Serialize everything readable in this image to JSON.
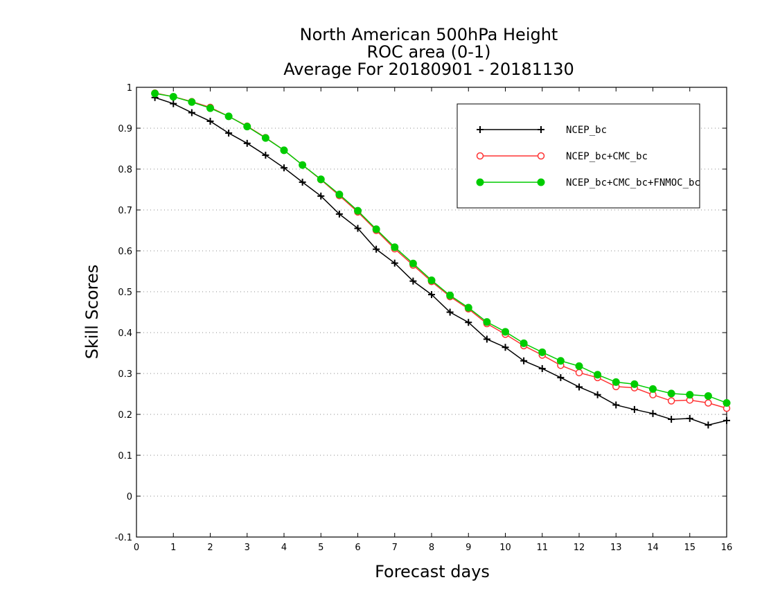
{
  "chart_data": {
    "type": "line",
    "title_lines": [
      "North American 500hPa Height",
      "ROC area (0-1)",
      "Average For 20180901 - 20181130"
    ],
    "xlabel": "Forecast days",
    "ylabel": "Skill Scores",
    "xlim": [
      0,
      16
    ],
    "ylim": [
      -0.1,
      1
    ],
    "x_ticks": [
      0,
      1,
      2,
      3,
      4,
      5,
      6,
      7,
      8,
      9,
      10,
      11,
      12,
      13,
      14,
      15,
      16
    ],
    "y_ticks": [
      -0.1,
      0,
      0.1,
      0.2,
      0.3,
      0.4,
      0.5,
      0.6,
      0.7,
      0.8,
      0.9,
      1
    ],
    "y_tick_labels": [
      "-0.1",
      "0",
      "0.1",
      "0.2",
      "0.3",
      "0.4",
      "0.5",
      "0.6",
      "0.7",
      "0.8",
      "0.9",
      "1"
    ],
    "grid": "horizontal dotted",
    "legend_position": "top-right",
    "x": [
      0.5,
      1,
      1.5,
      2,
      2.5,
      3,
      3.5,
      4,
      4.5,
      5,
      5.5,
      6,
      6.5,
      7,
      7.5,
      8,
      8.5,
      9,
      9.5,
      10,
      10.5,
      11,
      11.5,
      12,
      12.5,
      13,
      13.5,
      14,
      14.5,
      15,
      15.5,
      16
    ],
    "series": [
      {
        "name": "NCEP_bc",
        "color": "#000000",
        "marker": "plus",
        "values": [
          0.975,
          0.96,
          0.938,
          0.917,
          0.888,
          0.863,
          0.834,
          0.803,
          0.768,
          0.734,
          0.69,
          0.655,
          0.604,
          0.57,
          0.526,
          0.493,
          0.45,
          0.425,
          0.384,
          0.364,
          0.331,
          0.312,
          0.29,
          0.267,
          0.248,
          0.223,
          0.212,
          0.202,
          0.188,
          0.19,
          0.174,
          0.185
        ]
      },
      {
        "name": "NCEP_bc+CMC_bc",
        "color": "#ff3333",
        "marker": "open-circle",
        "values": [
          0.986,
          0.977,
          0.965,
          0.951,
          0.929,
          0.905,
          0.877,
          0.846,
          0.81,
          0.774,
          0.735,
          0.695,
          0.65,
          0.605,
          0.565,
          0.525,
          0.488,
          0.458,
          0.422,
          0.396,
          0.368,
          0.345,
          0.32,
          0.302,
          0.29,
          0.268,
          0.265,
          0.248,
          0.233,
          0.235,
          0.228,
          0.215
        ]
      },
      {
        "name": "NCEP_bc+CMC_bc+FNMOC_bc",
        "color": "#00cc00",
        "marker": "filled-circle",
        "values": [
          0.985,
          0.977,
          0.964,
          0.949,
          0.929,
          0.904,
          0.876,
          0.846,
          0.81,
          0.775,
          0.738,
          0.698,
          0.653,
          0.609,
          0.569,
          0.528,
          0.491,
          0.461,
          0.426,
          0.402,
          0.374,
          0.352,
          0.331,
          0.318,
          0.297,
          0.279,
          0.274,
          0.262,
          0.251,
          0.248,
          0.245,
          0.228
        ]
      }
    ]
  }
}
